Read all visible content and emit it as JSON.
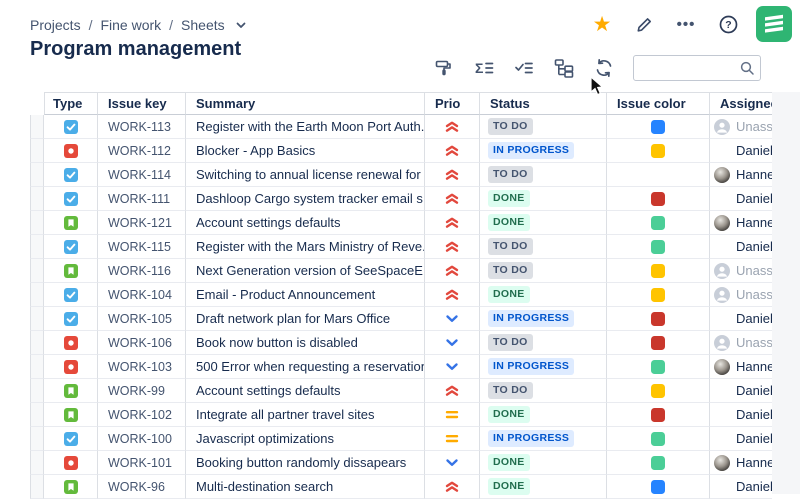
{
  "breadcrumb": {
    "items": [
      "Projects",
      "Fine work",
      "Sheets"
    ],
    "separator": "/"
  },
  "title": "Program management",
  "top_actions": {
    "star": "favorite",
    "edit": "edit",
    "more": "more-options",
    "help": "help",
    "logo": "sheets-app",
    "more_glyph": "•••",
    "help_glyph": "?"
  },
  "toolbar": {
    "icons": [
      "format-painter",
      "sum-formula",
      "checklist",
      "group-hierarchy",
      "refresh"
    ],
    "search": {
      "value": "",
      "placeholder": ""
    }
  },
  "colors": {
    "accent_star": "#FFAB00",
    "logo_green": "#2FB573",
    "issue_colors": {
      "blue": "#2684FF",
      "yellow": "#FFC400",
      "green": "#4BCE97",
      "darkred": "#C9372C"
    },
    "priority": {
      "highest": "#E2483D",
      "medium": "#FFAB00",
      "low": "#3573E6"
    },
    "type": {
      "task": "#4BADE8",
      "bug": "#E5493A",
      "story": "#63BA3C"
    }
  },
  "table": {
    "columns": [
      "Type",
      "Issue key",
      "Summary",
      "Prio",
      "Status",
      "Issue color",
      "Assignee"
    ],
    "status_labels": {
      "todo": "TO DO",
      "inprogress": "IN PROGRESS",
      "done": "DONE"
    },
    "unassigned_label": "Unassigned",
    "rows": [
      {
        "type": "task",
        "key": "WORK-113",
        "summary": "Register with the Earth Moon Port Auth...",
        "priority": "highest",
        "status": "todo",
        "color": "blue",
        "assignee": "Unassigned",
        "avatar": "unassigned"
      },
      {
        "type": "bug",
        "key": "WORK-112",
        "summary": "Blocker - App Basics",
        "priority": "highest",
        "status": "inprogress",
        "color": "yellow",
        "assignee": "Daniel F",
        "avatar": "daniel"
      },
      {
        "type": "task",
        "key": "WORK-114",
        "summary": "Switching to annual license renewal for ...",
        "priority": "highest",
        "status": "todo",
        "color": "",
        "assignee": "Hannes",
        "avatar": "hannes"
      },
      {
        "type": "task",
        "key": "WORK-111",
        "summary": "Dashloop Cargo system tracker email s...",
        "priority": "highest",
        "status": "done",
        "color": "darkred",
        "assignee": "Daniel F",
        "avatar": "daniel"
      },
      {
        "type": "story",
        "key": "WORK-121",
        "summary": "Account settings defaults",
        "priority": "highest",
        "status": "done",
        "color": "green",
        "assignee": "Hannes",
        "avatar": "hannes"
      },
      {
        "type": "task",
        "key": "WORK-115",
        "summary": "Register with the Mars Ministry of Reve...",
        "priority": "highest",
        "status": "todo",
        "color": "green",
        "assignee": "Daniel F",
        "avatar": "daniel"
      },
      {
        "type": "story",
        "key": "WORK-116",
        "summary": "Next Generation version of SeeSpaceE...",
        "priority": "highest",
        "status": "todo",
        "color": "yellow",
        "assignee": "Unassigned",
        "avatar": "unassigned"
      },
      {
        "type": "task",
        "key": "WORK-104",
        "summary": "Email - Product Announcement",
        "priority": "highest",
        "status": "done",
        "color": "yellow",
        "assignee": "Unassigned",
        "avatar": "unassigned"
      },
      {
        "type": "task",
        "key": "WORK-105",
        "summary": "Draft network plan for Mars Office",
        "priority": "low",
        "status": "inprogress",
        "color": "darkred",
        "assignee": "Daniel F",
        "avatar": "daniel"
      },
      {
        "type": "bug",
        "key": "WORK-106",
        "summary": "Book now button is disabled",
        "priority": "low",
        "status": "todo",
        "color": "darkred",
        "assignee": "Unassigned",
        "avatar": "unassigned"
      },
      {
        "type": "bug",
        "key": "WORK-103",
        "summary": "500 Error when requesting a reservation",
        "priority": "low",
        "status": "inprogress",
        "color": "green",
        "assignee": "Hannes",
        "avatar": "hannes"
      },
      {
        "type": "story",
        "key": "WORK-99",
        "summary": "Account settings defaults",
        "priority": "highest",
        "status": "todo",
        "color": "yellow",
        "assignee": "Daniel F",
        "avatar": "daniel"
      },
      {
        "type": "story",
        "key": "WORK-102",
        "summary": "Integrate all partner travel sites",
        "priority": "medium",
        "status": "done",
        "color": "darkred",
        "assignee": "Daniel F",
        "avatar": "daniel"
      },
      {
        "type": "task",
        "key": "WORK-100",
        "summary": "Javascript optimizations",
        "priority": "medium",
        "status": "inprogress",
        "color": "green",
        "assignee": "Daniel F",
        "avatar": "daniel"
      },
      {
        "type": "bug",
        "key": "WORK-101",
        "summary": "Booking button randomly dissapears",
        "priority": "low",
        "status": "done",
        "color": "green",
        "assignee": "Hannes",
        "avatar": "hannes"
      },
      {
        "type": "story",
        "key": "WORK-96",
        "summary": "Multi-destination search",
        "priority": "highest",
        "status": "done",
        "color": "blue",
        "assignee": "Daniel F",
        "avatar": "daniel"
      }
    ]
  }
}
